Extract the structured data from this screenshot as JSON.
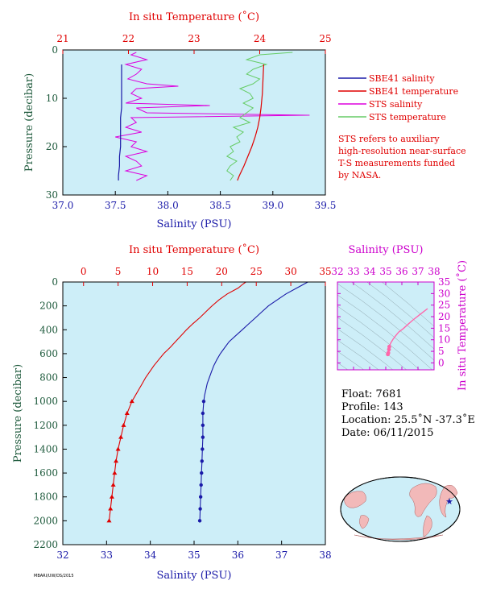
{
  "colors": {
    "plot_bg": "#cdeef8",
    "sbe41_salinity": "#1a1aa8",
    "sbe41_temperature": "#e00000",
    "sts_salinity": "#dd00dd",
    "sts_temperature": "#66cc66",
    "ts_line": "#ff66aa"
  },
  "top_panel": {
    "legend": [
      {
        "label": "SBE41 salinity",
        "color": "#1a1aa8"
      },
      {
        "label": "SBE41 temperature",
        "color": "#e00000"
      },
      {
        "label": "STS salinity",
        "color": "#dd00dd"
      },
      {
        "label": "STS temperature",
        "color": "#66cc66"
      }
    ],
    "note_lines": [
      "STS refers to auxiliary",
      "high-resolution near-surface",
      "T-S measurements funded",
      "by NASA."
    ]
  },
  "info": {
    "float": "Float:  7681",
    "profile": "Profile:  143",
    "location": "Location:  25.5˚N  -37.3˚E",
    "date": "Date:  06/11/2015"
  },
  "stamp": "MBARI/UW/DS/2015",
  "chart_data": [
    {
      "type": "line",
      "panel": "top",
      "xlabel": "Salinity (PSU)",
      "x2label": "In situ Temperature (˚C)",
      "ylabel": "Pressure (decibar)",
      "xlim": [
        37.0,
        39.5
      ],
      "x2lim": [
        21,
        25
      ],
      "ylim": [
        30,
        0
      ],
      "xticks": [
        "37.0",
        "37.5",
        "38.0",
        "38.5",
        "39.0",
        "39.5"
      ],
      "x2ticks": [
        "21",
        "22",
        "23",
        "24",
        "25"
      ],
      "yticks": [
        "0",
        "10",
        "20",
        "30"
      ],
      "series": [
        {
          "name": "SBE41 salinity",
          "axis": "salinity",
          "pressure": [
            3,
            5,
            8,
            10,
            12,
            14,
            16,
            18,
            20,
            22,
            24,
            26,
            27
          ],
          "values": [
            37.56,
            37.56,
            37.56,
            37.56,
            37.56,
            37.55,
            37.55,
            37.55,
            37.55,
            37.54,
            37.54,
            37.53,
            37.53
          ]
        },
        {
          "name": "SBE41 temperature",
          "axis": "temperature",
          "pressure": [
            3,
            6,
            9,
            12,
            14,
            16,
            18,
            20,
            22,
            24,
            26,
            27
          ],
          "values": [
            24.06,
            24.05,
            24.04,
            24.02,
            24.0,
            23.97,
            23.93,
            23.88,
            23.82,
            23.76,
            23.69,
            23.66
          ]
        },
        {
          "name": "STS salinity",
          "axis": "salinity",
          "pressure": [
            0.5,
            1,
            2,
            3,
            4,
            5,
            6,
            7,
            7.5,
            8,
            9,
            10,
            11,
            11.5,
            12,
            13,
            13.5,
            14,
            15,
            16,
            17,
            18,
            19,
            20,
            21,
            22,
            23,
            24,
            25,
            26,
            27
          ],
          "values": [
            37.7,
            37.65,
            37.8,
            37.6,
            37.75,
            37.7,
            37.62,
            37.8,
            38.1,
            37.7,
            37.65,
            37.75,
            37.6,
            38.4,
            37.7,
            37.8,
            39.35,
            37.65,
            37.7,
            37.6,
            37.75,
            37.5,
            37.7,
            37.65,
            37.8,
            37.6,
            37.7,
            37.75,
            37.6,
            37.8,
            37.7
          ]
        },
        {
          "name": "STS temperature",
          "axis": "temperature",
          "pressure": [
            0.5,
            1,
            2,
            3,
            4,
            5,
            6,
            7,
            8,
            9,
            10,
            11,
            12,
            13,
            14,
            15,
            16,
            17,
            18,
            19,
            20,
            21,
            22,
            23,
            24,
            25,
            26,
            27
          ],
          "values": [
            24.5,
            24.0,
            23.8,
            24.1,
            23.9,
            23.8,
            24.0,
            23.9,
            23.7,
            23.85,
            23.9,
            23.75,
            23.9,
            23.8,
            23.7,
            23.85,
            23.6,
            23.75,
            23.65,
            23.7,
            23.55,
            23.6,
            23.5,
            23.65,
            23.55,
            23.5,
            23.6,
            23.55
          ]
        }
      ]
    },
    {
      "type": "line",
      "panel": "bottom",
      "xlabel": "Salinity (PSU)",
      "x2label": "In situ Temperature (˚C)",
      "ylabel": "Pressure (decibar)",
      "xlim": [
        32,
        38
      ],
      "x2lim": [
        -3,
        35
      ],
      "ylim": [
        2200,
        0
      ],
      "xticks": [
        "32",
        "33",
        "34",
        "35",
        "36",
        "37",
        "38"
      ],
      "x2ticks": [
        "0",
        "5",
        "10",
        "15",
        "20",
        "25",
        "30",
        "35"
      ],
      "yticks": [
        "0",
        "200",
        "400",
        "600",
        "800",
        "1000",
        "1200",
        "1400",
        "1600",
        "1800",
        "2000",
        "2200"
      ],
      "series": [
        {
          "name": "temperature",
          "axis": "temperature",
          "pressure": [
            0,
            20,
            50,
            100,
            150,
            200,
            250,
            300,
            350,
            400,
            450,
            500,
            550,
            600,
            650,
            700,
            750,
            800,
            850,
            900,
            950,
            1000,
            1100,
            1200,
            1300,
            1400,
            1500,
            1600,
            1700,
            1800,
            1900,
            2000
          ],
          "values": [
            23.5,
            23.0,
            22.4,
            20.8,
            19.6,
            18.6,
            17.7,
            16.8,
            15.8,
            14.9,
            14.1,
            13.3,
            12.5,
            11.6,
            10.9,
            10.2,
            9.6,
            9.0,
            8.5,
            8.0,
            7.5,
            7.0,
            6.3,
            5.8,
            5.4,
            5.0,
            4.7,
            4.5,
            4.3,
            4.1,
            3.9,
            3.7
          ]
        },
        {
          "name": "salinity",
          "axis": "salinity",
          "pressure": [
            0,
            20,
            50,
            100,
            150,
            200,
            250,
            300,
            350,
            400,
            450,
            500,
            550,
            600,
            650,
            700,
            750,
            800,
            850,
            900,
            950,
            1000,
            1100,
            1200,
            1300,
            1400,
            1500,
            1600,
            1700,
            1800,
            1900,
            2000
          ],
          "values": [
            37.6,
            37.5,
            37.35,
            37.1,
            36.9,
            36.7,
            36.55,
            36.4,
            36.25,
            36.1,
            35.95,
            35.8,
            35.7,
            35.6,
            35.52,
            35.45,
            35.4,
            35.35,
            35.3,
            35.27,
            35.24,
            35.22,
            35.2,
            35.2,
            35.2,
            35.19,
            35.18,
            35.17,
            35.16,
            35.15,
            35.14,
            35.13
          ]
        }
      ]
    },
    {
      "type": "scatter",
      "panel": "ts-diagram",
      "xlabel": "Salinity (PSU)",
      "ylabel": "In situ Temperature (˚C)",
      "xlim": [
        32,
        38
      ],
      "ylim": [
        -3,
        35
      ],
      "xticks": [
        "32",
        "33",
        "34",
        "35",
        "36",
        "37",
        "38"
      ],
      "yticks": [
        "0",
        "5",
        "10",
        "15",
        "20",
        "25",
        "30",
        "35"
      ],
      "series": [
        {
          "salinity": [
            35.13,
            35.16,
            35.2,
            35.22,
            35.3,
            35.45,
            35.6,
            35.8,
            36.1,
            36.4,
            36.7,
            37.1,
            37.6
          ],
          "temperature": [
            3.7,
            4.3,
            5.8,
            7.0,
            8.5,
            10.2,
            11.6,
            13.3,
            14.9,
            16.8,
            18.6,
            20.8,
            23.5
          ]
        }
      ]
    }
  ]
}
